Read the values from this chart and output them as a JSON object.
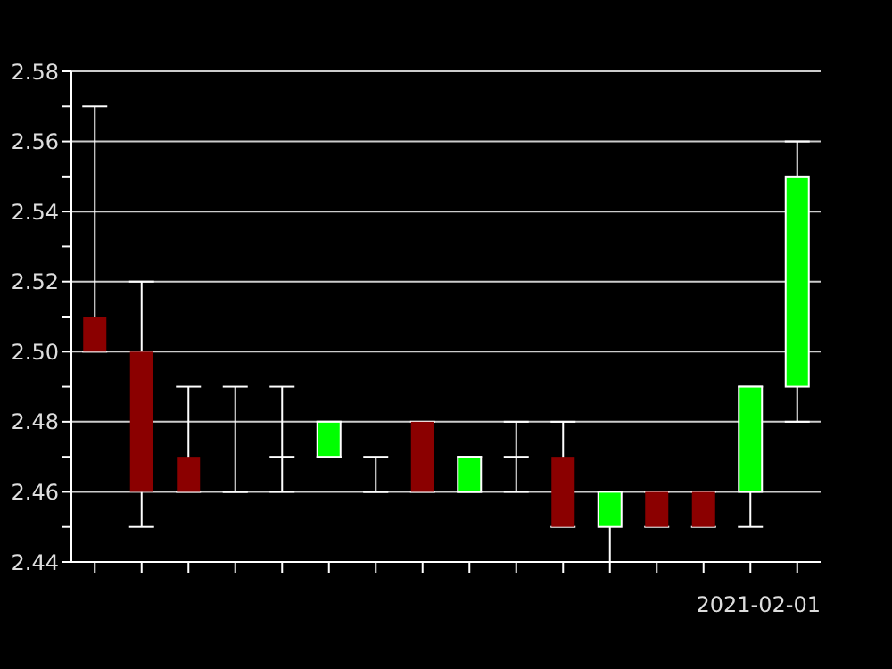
{
  "chart_data": {
    "type": "candlestick",
    "categories": [
      null,
      null,
      null,
      null,
      null,
      null,
      null,
      null,
      null,
      null,
      null,
      null,
      null,
      null,
      null,
      null
    ],
    "ohlc": [
      [
        2.51,
        2.57,
        2.5,
        2.5
      ],
      [
        2.5,
        2.52,
        2.45,
        2.46
      ],
      [
        2.47,
        2.49,
        2.46,
        2.46
      ],
      [
        2.46,
        2.49,
        2.46,
        2.46
      ],
      [
        2.47,
        2.49,
        2.46,
        2.47
      ],
      [
        2.47,
        2.48,
        2.47,
        2.48
      ],
      [
        2.46,
        2.47,
        2.46,
        2.46
      ],
      [
        2.48,
        2.48,
        2.46,
        2.46
      ],
      [
        2.46,
        2.47,
        2.46,
        2.47
      ],
      [
        2.47,
        2.48,
        2.46,
        2.47
      ],
      [
        2.47,
        2.48,
        2.45,
        2.45
      ],
      [
        2.45,
        2.46,
        2.44,
        2.46
      ],
      [
        2.46,
        2.46,
        2.45,
        2.45
      ],
      [
        2.46,
        2.46,
        2.45,
        2.45
      ],
      [
        2.46,
        2.49,
        2.45,
        2.49
      ],
      [
        2.49,
        2.56,
        2.48,
        2.55
      ]
    ],
    "color": "#ffffff",
    "colors": [
      "#8b0000",
      "#8b0000",
      "#8b0000",
      "#ffffff",
      "#ffffff",
      "#00ff00",
      "#ffffff",
      "#8b0000",
      "#00ff00",
      "#ffffff",
      "#8b0000",
      "#00ff00",
      "#8b0000",
      "#8b0000",
      "#00ff00",
      "#00ff00"
    ],
    "ylim": [
      2.44,
      2.58
    ],
    "yticks": [
      2.44,
      {
        "value": 2.45,
        "label": null
      },
      2.46,
      {
        "value": 2.47,
        "label": null
      },
      2.48,
      {
        "value": 2.49,
        "label": null
      },
      "2.50",
      {
        "value": 2.51,
        "label": null
      },
      2.52,
      {
        "value": 2.53,
        "label": null
      },
      2.54,
      {
        "value": 2.55,
        "label": null
      },
      2.56,
      {
        "value": 2.57,
        "label": null
      },
      2.58
    ],
    "grid": "y",
    "tick_labels": "y",
    "annotations": [
      "2021-02-01"
    ]
  }
}
